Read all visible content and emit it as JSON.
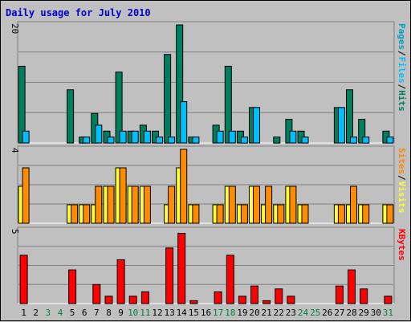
{
  "title": "Daily usage for July 2010",
  "colors": {
    "background": "#c0c0c0",
    "title": "#0000cc",
    "hits": "#007f5f",
    "files": "#00bfff",
    "pages": "#00a0c0",
    "visits": "#ff8c00",
    "sites": "#ffff33",
    "kbytes": "#ff0000",
    "weekend": "#008040",
    "weekday": "#000000",
    "grid": "#808080"
  },
  "chart_data": [
    {
      "type": "bar",
      "name": "hits-files-pages",
      "scale_label": "20",
      "ylim": [
        0,
        20
      ],
      "legend": [
        {
          "text": "Pages",
          "color_key": "pages"
        },
        {
          "text": "/",
          "color_key": "weekday"
        },
        {
          "text": "Files",
          "color_key": "files"
        },
        {
          "text": "/",
          "color_key": "weekday"
        },
        {
          "text": "Hits",
          "color_key": "hits"
        }
      ],
      "categories": [
        "1",
        "2",
        "3",
        "4",
        "5",
        "6",
        "7",
        "8",
        "9",
        "10",
        "11",
        "12",
        "13",
        "14",
        "15",
        "16",
        "17",
        "18",
        "19",
        "20",
        "21",
        "22",
        "23",
        "24",
        "25",
        "26",
        "27",
        "28",
        "29",
        "30",
        "31"
      ],
      "series": [
        {
          "name": "Hits",
          "color_key": "hits",
          "values": [
            13,
            0,
            0,
            0,
            9,
            1,
            5,
            2,
            12,
            2,
            3,
            2,
            15,
            20,
            1,
            0,
            3,
            13,
            2,
            6,
            0,
            1,
            4,
            2,
            0,
            0,
            6,
            9,
            4,
            0,
            2
          ]
        },
        {
          "name": "Files",
          "color_key": "files",
          "values": [
            2,
            0,
            0,
            0,
            0,
            1,
            3,
            1,
            2,
            2,
            2,
            1,
            1,
            7,
            1,
            0,
            2,
            2,
            1,
            6,
            0,
            0,
            2,
            1,
            0,
            0,
            6,
            1,
            1,
            0,
            1
          ]
        }
      ]
    },
    {
      "type": "bar",
      "name": "sites-visits",
      "scale_label": "4",
      "ylim": [
        0,
        4
      ],
      "legend": [
        {
          "text": "Sites",
          "color_key": "visits"
        },
        {
          "text": "/",
          "color_key": "weekday"
        },
        {
          "text": "Visits",
          "color_key": "sites"
        }
      ],
      "categories": [
        "1",
        "2",
        "3",
        "4",
        "5",
        "6",
        "7",
        "8",
        "9",
        "10",
        "11",
        "12",
        "13",
        "14",
        "15",
        "16",
        "17",
        "18",
        "19",
        "20",
        "21",
        "22",
        "23",
        "24",
        "25",
        "26",
        "27",
        "28",
        "29",
        "30",
        "31"
      ],
      "series": [
        {
          "name": "Visits",
          "color_key": "sites",
          "values": [
            2,
            0,
            0,
            0,
            1,
            1,
            1,
            2,
            3,
            2,
            2,
            0,
            1,
            3,
            1,
            0,
            1,
            2,
            1,
            2,
            1,
            1,
            2,
            1,
            0,
            0,
            1,
            1,
            1,
            0,
            1
          ]
        },
        {
          "name": "Sites",
          "color_key": "visits",
          "values": [
            3,
            0,
            0,
            0,
            1,
            1,
            2,
            2,
            3,
            2,
            2,
            0,
            2,
            4,
            1,
            0,
            1,
            2,
            1,
            2,
            2,
            1,
            2,
            1,
            0,
            0,
            1,
            2,
            1,
            0,
            1
          ]
        }
      ]
    },
    {
      "type": "bar",
      "name": "kbytes",
      "scale_label": "5",
      "ylim": [
        0,
        5
      ],
      "legend": [
        {
          "text": "KBytes",
          "color_key": "kbytes"
        }
      ],
      "categories": [
        "1",
        "2",
        "3",
        "4",
        "5",
        "6",
        "7",
        "8",
        "9",
        "10",
        "11",
        "12",
        "13",
        "14",
        "15",
        "16",
        "17",
        "18",
        "19",
        "20",
        "21",
        "22",
        "23",
        "24",
        "25",
        "26",
        "27",
        "28",
        "29",
        "30",
        "31"
      ],
      "series": [
        {
          "name": "KBytes",
          "color_key": "kbytes",
          "values": [
            3.3,
            0,
            0,
            0,
            2.3,
            0,
            1.3,
            0.5,
            3.0,
            0.5,
            0.8,
            0,
            3.8,
            4.8,
            0.2,
            0,
            0.8,
            3.3,
            0.5,
            1.2,
            0.2,
            1.0,
            0.5,
            0,
            0,
            0,
            1.2,
            2.3,
            1.0,
            0,
            0.5
          ]
        }
      ]
    }
  ],
  "x_axis": {
    "labels": [
      "1",
      "2",
      "3",
      "4",
      "5",
      "6",
      "7",
      "8",
      "9",
      "10",
      "11",
      "12",
      "13",
      "14",
      "15",
      "16",
      "17",
      "18",
      "19",
      "20",
      "21",
      "22",
      "23",
      "24",
      "25",
      "26",
      "27",
      "28",
      "29",
      "30",
      "31"
    ],
    "weekend": [
      false,
      false,
      true,
      true,
      false,
      false,
      false,
      false,
      false,
      true,
      true,
      false,
      false,
      false,
      false,
      false,
      true,
      true,
      false,
      false,
      false,
      false,
      false,
      true,
      true,
      false,
      false,
      false,
      false,
      false,
      true
    ]
  }
}
